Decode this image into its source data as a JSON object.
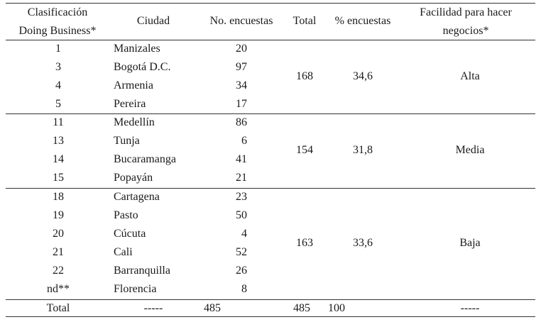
{
  "headers": {
    "clasificacion_line1": "Clasificación",
    "clasificacion_line2": "Doing Business*",
    "ciudad": "Ciudad",
    "no_encuestas": "No. encuestas",
    "total": "Total",
    "pct_encuestas": "% encuestas",
    "facilidad_line1": "Facilidad para hacer",
    "facilidad_line2": "negocios*"
  },
  "groups": [
    {
      "rows": [
        {
          "rank": "1",
          "city": "Manizales",
          "surveys": "20"
        },
        {
          "rank": "3",
          "city": "Bogotá D.C.",
          "surveys": "97"
        },
        {
          "rank": "4",
          "city": "Armenia",
          "surveys": "34"
        },
        {
          "rank": "5",
          "city": "Pereira",
          "surveys": "17"
        }
      ],
      "total": "168",
      "pct": "34,6",
      "ease": "Alta"
    },
    {
      "rows": [
        {
          "rank": "11",
          "city": "Medellín",
          "surveys": "86"
        },
        {
          "rank": "13",
          "city": "Tunja",
          "surveys": "6"
        },
        {
          "rank": "14",
          "city": "Bucaramanga",
          "surveys": "41"
        },
        {
          "rank": "15",
          "city": "Popayán",
          "surveys": "21"
        }
      ],
      "total": "154",
      "pct": "31,8",
      "ease": "Media"
    },
    {
      "rows": [
        {
          "rank": "18",
          "city": "Cartagena",
          "surveys": "23"
        },
        {
          "rank": "19",
          "city": "Pasto",
          "surveys": "50"
        },
        {
          "rank": "20",
          "city": "Cúcuta",
          "surveys": "4"
        },
        {
          "rank": "21",
          "city": "Cali",
          "surveys": "52"
        },
        {
          "rank": "22",
          "city": "Barranquilla",
          "surveys": "26"
        },
        {
          "rank": "nd**",
          "city": "Florencia",
          "surveys": "8"
        }
      ],
      "total": "163",
      "pct": "33,6",
      "ease": "Baja"
    }
  ],
  "footer": {
    "label": "Total",
    "city": "-----",
    "surveys": "485",
    "total": "485",
    "pct": "100",
    "ease": "-----"
  }
}
